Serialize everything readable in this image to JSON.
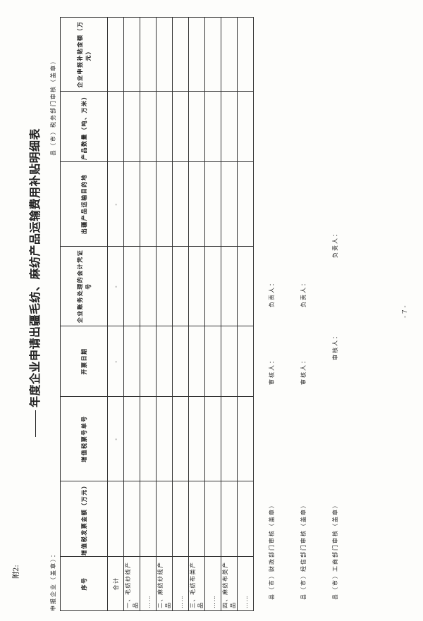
{
  "attachment_label": "附2:",
  "title": "年度企业申请出疆毛纺、麻纺产品运输费用补贴明细表",
  "applicant": "申报企业（盖章）：",
  "tax_review": "县（市）税务部门审核（盖章）",
  "table": {
    "headers": [
      "序号",
      "增值税发票金额（万元）",
      "增值税票号单号",
      "开票日期",
      "企业账务处理的会计凭证号",
      "出疆产品运输目的地",
      "产品数量（吨、万米）",
      "企业申报补贴金额（万元）"
    ],
    "rows": [
      [
        "合计",
        "",
        "-",
        "-",
        "-",
        "-",
        "",
        ""
      ],
      [
        "一、毛纺纱线产品",
        "",
        "",
        "",
        "",
        "",
        "",
        ""
      ],
      [
        "……",
        "",
        "",
        "",
        "",
        "",
        "",
        ""
      ],
      [
        "二、麻纺纱线产品",
        "",
        "",
        "",
        "",
        "",
        "",
        ""
      ],
      [
        "……",
        "",
        "",
        "",
        "",
        "",
        "",
        ""
      ],
      [
        "三、毛纺布类产品",
        "",
        "",
        "",
        "",
        "",
        "",
        ""
      ],
      [
        "……",
        "",
        "",
        "",
        "",
        "",
        "",
        ""
      ],
      [
        "四、麻纺布类产品",
        "",
        "",
        "",
        "",
        "",
        "",
        ""
      ],
      [
        "……",
        "",
        "",
        "",
        "",
        "",
        "",
        ""
      ]
    ]
  },
  "footer": [
    {
      "dept": "县（市）财政部门审核（盖章）",
      "reviewer": "审核人：",
      "leader": "负责人："
    },
    {
      "dept": "县（市）经信部门审核（盖章）",
      "reviewer": "审核人：",
      "leader": "负责人："
    },
    {
      "dept": "县（市）工商部门审核（盖章）",
      "reviewer": "审核人：",
      "leader": "负责人："
    }
  ],
  "page_number": "- 7 -"
}
